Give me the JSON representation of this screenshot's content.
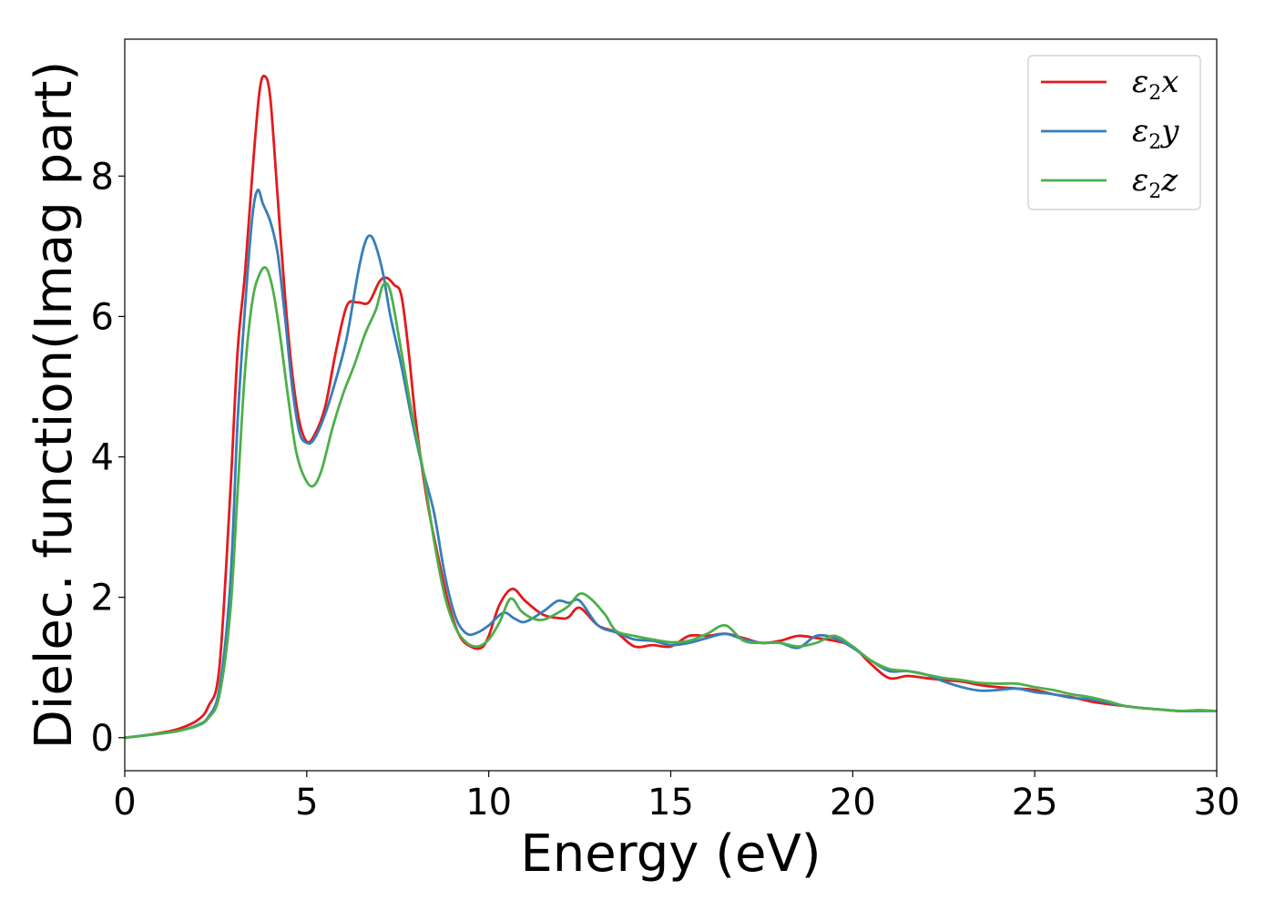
{
  "chart_data": {
    "type": "line",
    "xlabel": "Energy (eV)",
    "ylabel": "Dielec. function(Imag part)",
    "xlim": [
      0,
      30
    ],
    "ylim": [
      -0.47,
      9.95
    ],
    "xticks": [
      0,
      5,
      10,
      15,
      20,
      25,
      30
    ],
    "yticks": [
      0,
      2,
      4,
      6,
      8
    ],
    "grid": false,
    "legend_position": "top-right",
    "series": [
      {
        "name": "ε2x",
        "legend": {
          "base": "ε",
          "sub": "2",
          "comp": "x"
        },
        "color": "#e41a1c",
        "x": [
          0,
          0.5,
          1.0,
          1.5,
          2.0,
          2.3,
          2.6,
          2.9,
          3.1,
          3.3,
          3.5,
          3.7,
          3.85,
          4.0,
          4.2,
          4.4,
          4.6,
          4.8,
          5.0,
          5.2,
          5.5,
          5.8,
          6.1,
          6.4,
          6.7,
          7.0,
          7.2,
          7.4,
          7.6,
          7.8,
          8.0,
          8.3,
          8.6,
          8.9,
          9.2,
          9.5,
          9.8,
          10.0,
          10.3,
          10.65,
          11.0,
          11.5,
          12.0,
          12.2,
          12.5,
          13.0,
          13.5,
          14.0,
          14.5,
          15.0,
          15.5,
          16.0,
          16.5,
          17.0,
          17.5,
          18.0,
          18.5,
          19.0,
          19.5,
          20.0,
          20.5,
          21.0,
          21.5,
          22.0,
          22.5,
          23.0,
          23.5,
          24.0,
          24.5,
          25.0,
          25.5,
          26.0,
          26.5,
          27.0,
          27.5,
          28.0,
          28.5,
          29.0,
          29.5,
          30.0
        ],
        "y": [
          0.0,
          0.03,
          0.07,
          0.13,
          0.25,
          0.45,
          1.0,
          3.5,
          5.5,
          6.6,
          8.0,
          9.2,
          9.42,
          9.1,
          7.7,
          6.3,
          5.2,
          4.5,
          4.22,
          4.3,
          4.7,
          5.5,
          6.15,
          6.2,
          6.2,
          6.5,
          6.55,
          6.45,
          6.3,
          5.5,
          4.5,
          3.4,
          2.6,
          1.9,
          1.45,
          1.3,
          1.28,
          1.45,
          1.9,
          2.12,
          1.95,
          1.75,
          1.7,
          1.72,
          1.85,
          1.6,
          1.5,
          1.3,
          1.32,
          1.3,
          1.45,
          1.45,
          1.48,
          1.42,
          1.35,
          1.38,
          1.45,
          1.42,
          1.38,
          1.3,
          1.05,
          0.85,
          0.88,
          0.85,
          0.82,
          0.8,
          0.75,
          0.72,
          0.7,
          0.68,
          0.62,
          0.58,
          0.52,
          0.48,
          0.45,
          0.42,
          0.4,
          0.38,
          0.39,
          0.38
        ]
      },
      {
        "name": "ε2y",
        "legend": {
          "base": "ε",
          "sub": "2",
          "comp": "y"
        },
        "color": "#377eb8",
        "x": [
          0,
          0.5,
          1.0,
          1.5,
          2.0,
          2.3,
          2.6,
          2.9,
          3.1,
          3.3,
          3.5,
          3.65,
          3.8,
          4.0,
          4.2,
          4.4,
          4.6,
          4.8,
          5.0,
          5.2,
          5.5,
          5.8,
          6.1,
          6.4,
          6.6,
          6.75,
          6.9,
          7.1,
          7.3,
          7.6,
          7.9,
          8.2,
          8.5,
          8.8,
          9.1,
          9.4,
          9.7,
          10.0,
          10.4,
          10.7,
          11.0,
          11.5,
          11.9,
          12.2,
          12.5,
          13.0,
          13.5,
          14.0,
          14.5,
          15.0,
          15.5,
          16.0,
          16.5,
          17.0,
          17.5,
          18.0,
          18.5,
          19.0,
          19.5,
          20.0,
          20.5,
          21.0,
          21.5,
          22.0,
          22.5,
          23.0,
          23.5,
          24.0,
          24.5,
          25.0,
          25.5,
          26.0,
          26.5,
          27.0,
          27.5,
          28.0,
          28.5,
          29.0,
          29.5,
          30.0
        ],
        "y": [
          0.0,
          0.03,
          0.06,
          0.1,
          0.18,
          0.3,
          0.7,
          2.2,
          4.5,
          6.1,
          7.4,
          7.8,
          7.6,
          7.35,
          6.9,
          6.0,
          5.0,
          4.35,
          4.2,
          4.25,
          4.6,
          5.1,
          5.7,
          6.6,
          7.05,
          7.15,
          7.0,
          6.6,
          6.0,
          5.3,
          4.5,
          3.8,
          3.2,
          2.3,
          1.7,
          1.48,
          1.5,
          1.6,
          1.78,
          1.7,
          1.65,
          1.8,
          1.95,
          1.92,
          1.95,
          1.6,
          1.5,
          1.4,
          1.38,
          1.32,
          1.35,
          1.42,
          1.48,
          1.4,
          1.35,
          1.35,
          1.28,
          1.45,
          1.42,
          1.28,
          1.1,
          0.95,
          0.95,
          0.9,
          0.8,
          0.72,
          0.67,
          0.68,
          0.7,
          0.65,
          0.62,
          0.57,
          0.55,
          0.5,
          0.45,
          0.42,
          0.4,
          0.38,
          0.38,
          0.38
        ]
      },
      {
        "name": "ε2z",
        "legend": {
          "base": "ε",
          "sub": "2",
          "comp": "z"
        },
        "color": "#4daf4a",
        "x": [
          0,
          0.5,
          1.0,
          1.5,
          2.0,
          2.3,
          2.6,
          2.9,
          3.1,
          3.3,
          3.5,
          3.7,
          3.9,
          4.1,
          4.3,
          4.5,
          4.7,
          4.9,
          5.15,
          5.4,
          5.7,
          6.0,
          6.3,
          6.6,
          6.9,
          7.1,
          7.3,
          7.6,
          7.9,
          8.2,
          8.5,
          8.8,
          9.1,
          9.4,
          9.7,
          10.0,
          10.3,
          10.6,
          10.9,
          11.2,
          11.5,
          11.9,
          12.2,
          12.5,
          12.8,
          13.2,
          13.5,
          14.0,
          14.5,
          15.0,
          15.5,
          16.0,
          16.5,
          17.0,
          17.5,
          18.0,
          18.5,
          19.0,
          19.5,
          20.0,
          20.5,
          21.0,
          21.5,
          22.0,
          22.5,
          23.0,
          23.5,
          24.0,
          24.5,
          25.0,
          25.5,
          26.0,
          26.5,
          27.0,
          27.5,
          28.0,
          28.5,
          29.0,
          29.5,
          30.0
        ],
        "y": [
          0.0,
          0.03,
          0.06,
          0.1,
          0.17,
          0.28,
          0.6,
          1.8,
          3.5,
          5.2,
          6.2,
          6.6,
          6.68,
          6.3,
          5.6,
          4.8,
          4.1,
          3.75,
          3.58,
          3.8,
          4.4,
          4.9,
          5.3,
          5.75,
          6.1,
          6.45,
          6.35,
          5.5,
          4.6,
          3.8,
          2.8,
          2.0,
          1.55,
          1.35,
          1.3,
          1.4,
          1.65,
          1.98,
          1.8,
          1.7,
          1.68,
          1.78,
          1.88,
          2.05,
          1.98,
          1.75,
          1.52,
          1.45,
          1.4,
          1.36,
          1.38,
          1.48,
          1.6,
          1.38,
          1.35,
          1.35,
          1.3,
          1.35,
          1.45,
          1.3,
          1.1,
          0.98,
          0.95,
          0.9,
          0.85,
          0.82,
          0.78,
          0.77,
          0.77,
          0.72,
          0.68,
          0.62,
          0.58,
          0.52,
          0.45,
          0.42,
          0.4,
          0.38,
          0.39,
          0.38
        ]
      }
    ]
  }
}
